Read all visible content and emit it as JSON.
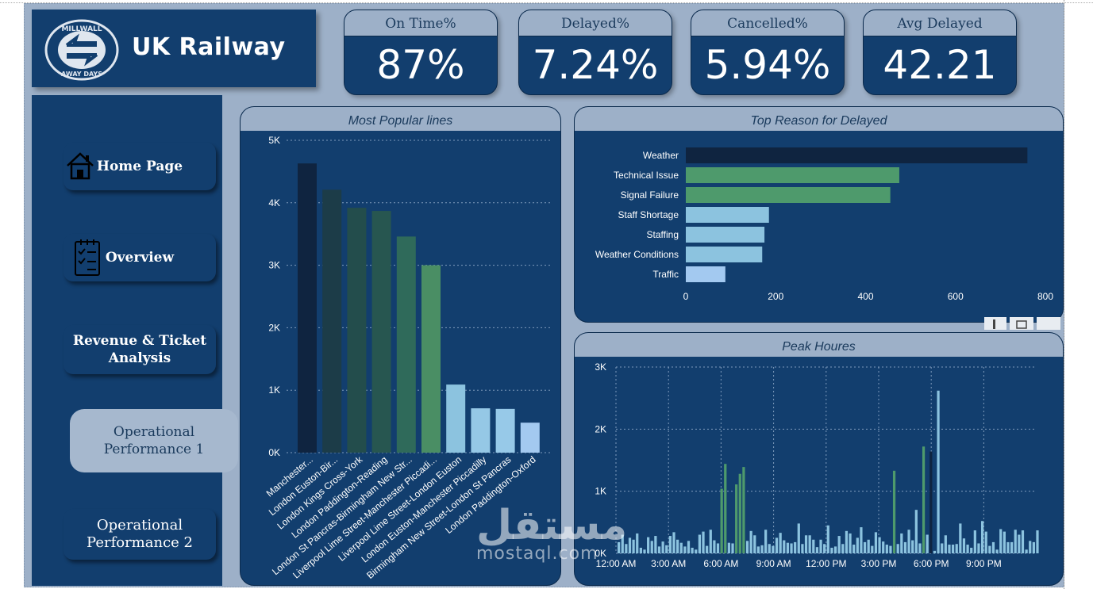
{
  "app": {
    "title": "UK Railway",
    "logo_top_text": "MILLWALL",
    "logo_bottom_text": "AWAY DAYS"
  },
  "kpis": [
    {
      "label": "On Time%",
      "value": "87%"
    },
    {
      "label": "Delayed%",
      "value": "7.24%"
    },
    {
      "label": "Cancelled%",
      "value": "5.94%"
    },
    {
      "label": "Avg Delayed",
      "value": "42.21"
    }
  ],
  "nav": {
    "home": "Home Page",
    "overview": "Overview",
    "revenue": "Revenue & Ticket Analysis",
    "operational1": "Operational Performance 1",
    "operational2": "Operational Performance 2"
  },
  "colors": {
    "navy": "#123e6e",
    "dark": "#0f2440",
    "green": "#4e9a6c",
    "light_blue": "#8cc3df",
    "header": "#9db0c8"
  },
  "watermark": {
    "arabic": "مستقل",
    "latin": "mostaql.com"
  },
  "chart_data": [
    {
      "type": "bar",
      "title": "Most Popular lines",
      "categories": [
        "Manchester...",
        "London Euston-Bir...",
        "London Kings Cross-York",
        "London Paddington-Reading",
        "London St Pancras-Birmingham New Str...",
        "Liverpool Lime Street-Manchester Piccadi...",
        "Liverpool Lime Street-London Euston",
        "London Euston-Manchester Piccadilly",
        "Birmingham New Street-London St Pancras",
        "London Paddington-Oxford"
      ],
      "values": [
        4630,
        4210,
        3920,
        3870,
        3460,
        3000,
        1090,
        710,
        700,
        480
      ],
      "ylim": [
        0,
        5000
      ],
      "yticks": [
        "0K",
        "1K",
        "2K",
        "3K",
        "4K",
        "5K"
      ],
      "bar_colors": [
        "#0f2440",
        "#1c3c48",
        "#234d4c",
        "#275650",
        "#2f6a5a",
        "#4a8e64",
        "#8cc3df",
        "#95c8e6",
        "#97c9e8",
        "#a3c9f0"
      ]
    },
    {
      "type": "bar",
      "orientation": "horizontal",
      "title": "Top Reason for Delayed",
      "categories": [
        "Weather",
        "Technical Issue",
        "Signal Failure",
        "Staff Shortage",
        "Staffing",
        "Weather Conditions",
        "Traffic"
      ],
      "values": [
        760,
        475,
        455,
        185,
        175,
        170,
        88
      ],
      "xlim": [
        0,
        800
      ],
      "xticks": [
        "0",
        "200",
        "400",
        "600",
        "800"
      ],
      "bar_colors": [
        "#0f2440",
        "#4e9a6c",
        "#4e9a6c",
        "#8cc3df",
        "#8cc3df",
        "#8cc3df",
        "#a3c9f0"
      ]
    },
    {
      "type": "bar",
      "title": "Peak Houres",
      "ylim": [
        0,
        3000
      ],
      "yticks": [
        "0K",
        "1K",
        "2K",
        "3K"
      ],
      "xticks": [
        "12:00 AM",
        "3:00 AM",
        "6:00 AM",
        "9:00 AM",
        "12:00 PM",
        "3:00 PM",
        "6:00 PM",
        "9:00 PM"
      ],
      "values": [
        180,
        300,
        150,
        250,
        220,
        320,
        90,
        60,
        260,
        200,
        280,
        110,
        190,
        130,
        280,
        340,
        220,
        170,
        110,
        200,
        90,
        60,
        300,
        350,
        120,
        380,
        210,
        160,
        1040,
        1440,
        170,
        160,
        1110,
        1280,
        1390,
        200,
        360,
        290,
        110,
        130,
        380,
        150,
        120,
        250,
        330,
        210,
        170,
        160,
        180,
        480,
        150,
        290,
        290,
        220,
        100,
        220,
        150,
        450,
        90,
        110,
        280,
        150,
        360,
        320,
        140,
        250,
        420,
        180,
        220,
        120,
        340,
        260,
        190,
        140,
        120,
        1330,
        150,
        320,
        180,
        380,
        210,
        700,
        160,
        1720,
        300,
        1640,
        40,
        2620,
        160,
        290,
        140,
        140,
        150,
        480,
        240,
        140,
        90,
        370,
        160,
        520,
        350,
        120,
        180,
        60,
        390,
        350,
        180,
        180,
        380,
        300,
        370,
        60,
        200,
        180,
        370
      ],
      "highlight_green": [
        28,
        29,
        32,
        33,
        34,
        75,
        83
      ],
      "highlight_dark": [
        85
      ]
    }
  ]
}
